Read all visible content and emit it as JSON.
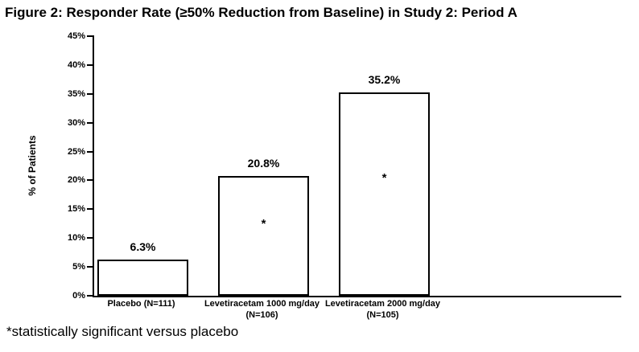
{
  "page": {
    "title": "Figure 2: Responder Rate (≥50% Reduction from Baseline) in Study 2: Period A",
    "footnote": "*statistically significant versus placebo"
  },
  "chart_data": {
    "type": "bar",
    "title": "Figure 2: Responder Rate (≥50% Reduction from Baseline) in Study 2: Period A",
    "ylabel": "% of Patients",
    "xlabel": "",
    "categories": [
      "Placebo (N=111)",
      "Levetiracetam 1000 mg/day (N=106)",
      "Levetiracetam 2000 mg/day (N=105)"
    ],
    "category_lines": [
      [
        "Placebo (N=111)"
      ],
      [
        "Levetiracetam 1000 mg/day",
        "(N=106)"
      ],
      [
        "Levetiracetam 2000 mg/day",
        "(N=105)"
      ]
    ],
    "values": [
      6.3,
      20.8,
      35.2
    ],
    "value_labels": [
      "6.3%",
      "20.8%",
      "35.2%"
    ],
    "significant": [
      false,
      true,
      true
    ],
    "significance_marker": "*",
    "ylim": [
      0,
      45
    ],
    "ytick_step": 5,
    "ytick_labels": [
      "0%",
      "5%",
      "10%",
      "15%",
      "20%",
      "25%",
      "30%",
      "35%",
      "40%",
      "45%"
    ],
    "grid": false,
    "legend": "none",
    "bar_fill": "#ffffff",
    "bar_border": "#000000"
  }
}
